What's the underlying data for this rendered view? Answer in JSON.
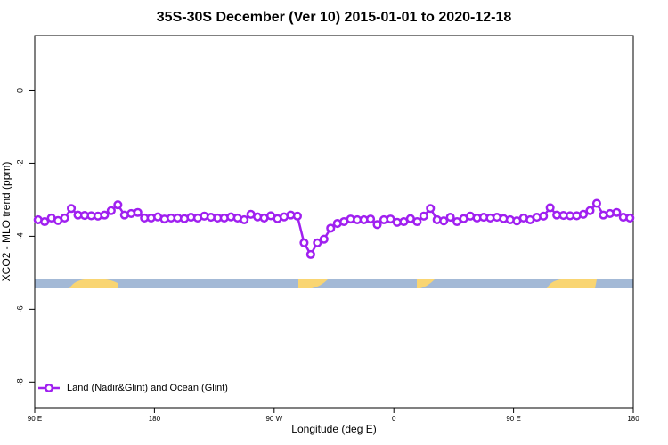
{
  "chart_data": {
    "type": "line",
    "title": "35S-30S December (Ver 10)   2015-01-01 to 2020-12-18",
    "x_label": "Longitude (deg E)",
    "y_label": "XCO2 - MLO trend (ppm)",
    "x": [
      92.5,
      97.5,
      102.5,
      107.5,
      112.5,
      117.5,
      122.5,
      127.5,
      132.5,
      137.5,
      142.5,
      147.5,
      152.5,
      157.5,
      162.5,
      167.5,
      172.5,
      177.5,
      182.5,
      187.5,
      192.5,
      197.5,
      202.5,
      207.5,
      212.5,
      217.5,
      222.5,
      227.5,
      232.5,
      237.5,
      242.5,
      247.5,
      252.5,
      257.5,
      262.5,
      267.5,
      272.5,
      277.5,
      282.5,
      287.5,
      292.5,
      297.5,
      302.5,
      307.5,
      312.5,
      317.5,
      322.5,
      327.5,
      332.5,
      337.5,
      342.5,
      347.5,
      352.5,
      357.5,
      362.5,
      367.5,
      372.5,
      377.5,
      382.5,
      387.5,
      392.5,
      397.5,
      402.5,
      407.5,
      412.5,
      417.5,
      422.5,
      427.5,
      432.5,
      437.5,
      442.5,
      447.5,
      452.5,
      457.5,
      462.5,
      467.5,
      472.5,
      477.5,
      482.5,
      487.5,
      492.5,
      497.5,
      502.5,
      507.5,
      512.5,
      517.5,
      522.5,
      527.5,
      532.5,
      537.5
    ],
    "series": [
      {
        "name": "Land (Nadir&Glint) and Ocean (Glint)",
        "color": "#a020f0",
        "values": [
          -3.55,
          -3.6,
          -3.5,
          -3.57,
          -3.5,
          -3.24,
          -3.42,
          -3.43,
          -3.44,
          -3.45,
          -3.42,
          -3.3,
          -3.14,
          -3.42,
          -3.38,
          -3.35,
          -3.5,
          -3.5,
          -3.47,
          -3.53,
          -3.5,
          -3.5,
          -3.52,
          -3.48,
          -3.5,
          -3.45,
          -3.48,
          -3.5,
          -3.5,
          -3.47,
          -3.5,
          -3.55,
          -3.4,
          -3.47,
          -3.5,
          -3.44,
          -3.52,
          -3.47,
          -3.42,
          -3.45,
          -4.18,
          -4.5,
          -4.18,
          -4.08,
          -3.78,
          -3.65,
          -3.6,
          -3.53,
          -3.55,
          -3.55,
          -3.53,
          -3.68,
          -3.55,
          -3.53,
          -3.62,
          -3.6,
          -3.52,
          -3.6,
          -3.45,
          -3.24,
          -3.55,
          -3.58,
          -3.48,
          -3.6,
          -3.52,
          -3.45,
          -3.5,
          -3.48,
          -3.5,
          -3.48,
          -3.52,
          -3.55,
          -3.58,
          -3.5,
          -3.55,
          -3.48,
          -3.45,
          -3.22,
          -3.42,
          -3.43,
          -3.44,
          -3.44,
          -3.4,
          -3.3,
          -3.1,
          -3.42,
          -3.38,
          -3.35,
          -3.48,
          -3.5
        ]
      }
    ],
    "xlim": [
      90,
      540
    ],
    "xticks": [
      {
        "value": 90,
        "label": "90 E"
      },
      180,
      {
        "value": 270,
        "label": "90 W"
      },
      {
        "value": 360,
        "label": "0"
      },
      {
        "value": 450,
        "label": "90 E"
      },
      {
        "value": 540,
        "label": "180"
      }
    ],
    "ylim": [
      -8.7,
      1.5
    ],
    "yticks": [
      0,
      -2,
      -4,
      -6,
      -8
    ],
    "legend": "bottom-left"
  }
}
